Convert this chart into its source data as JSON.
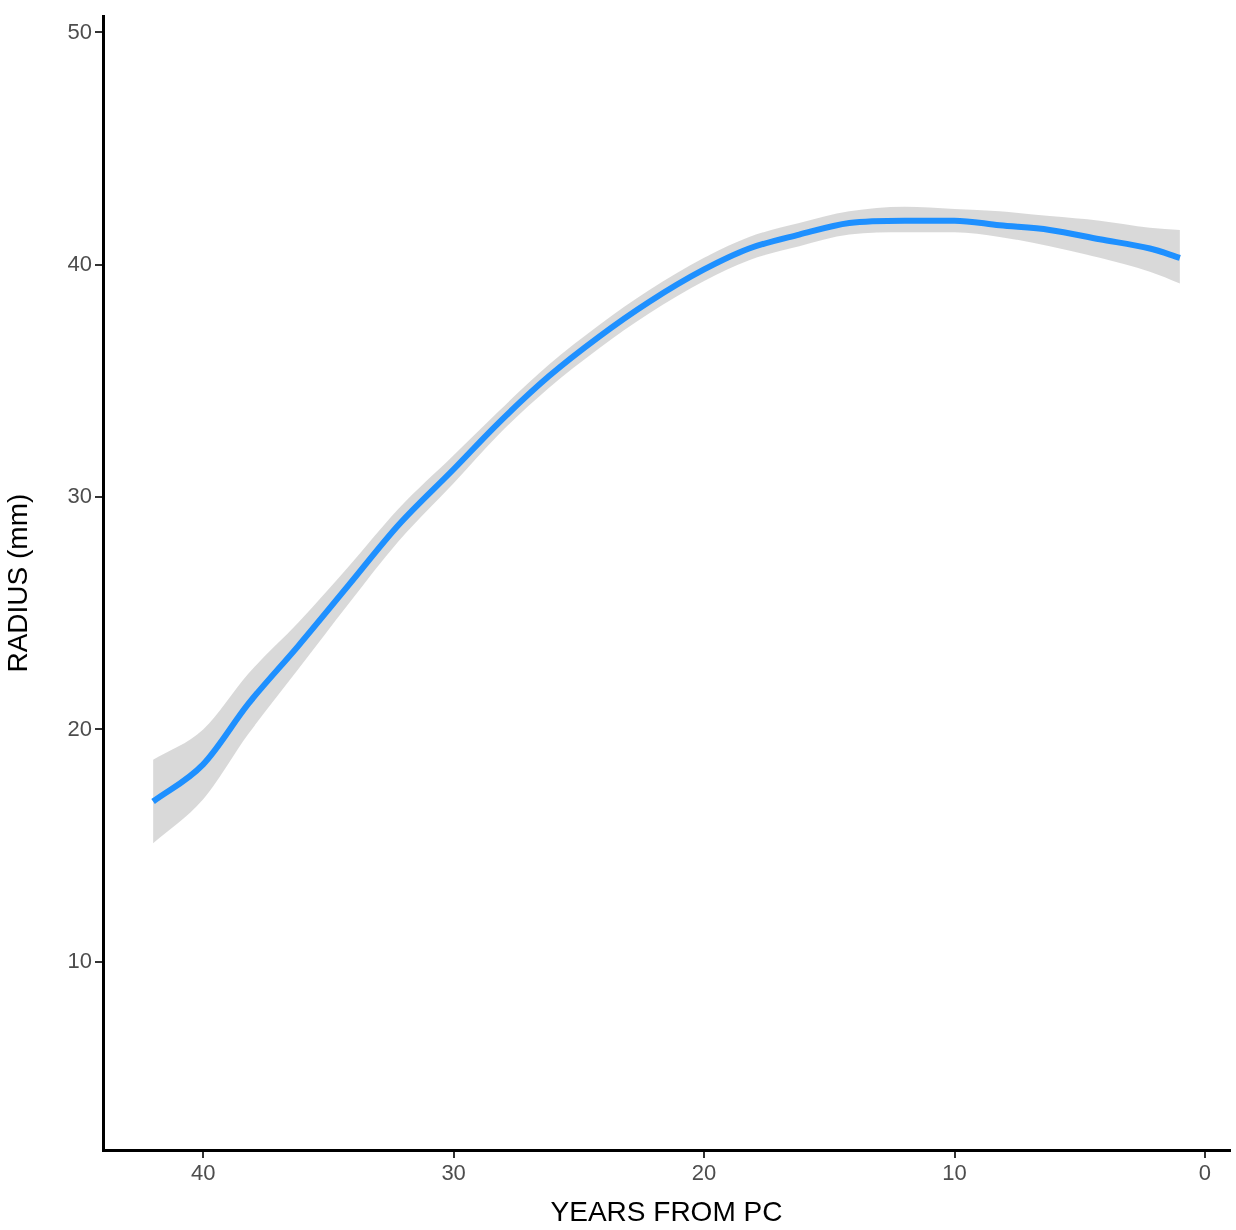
{
  "chart_data": {
    "type": "line",
    "xlabel": "YEARS FROM PC",
    "ylabel": "RADIUS (mm)",
    "x": [
      42,
      40,
      38.2,
      36.2,
      34.2,
      32.2,
      30,
      28.2,
      26.2,
      24.2,
      22.2,
      20,
      18.2,
      16.2,
      14.2,
      12,
      10,
      8.2,
      6.2,
      4.2,
      2.2,
      1
    ],
    "series": [
      {
        "color": "#1e90ff",
        "values": [
          16.9,
          18.5,
          21.1,
          23.6,
          26.2,
          28.8,
          31.2,
          33.2,
          35.2,
          36.9,
          38.4,
          39.8,
          40.7,
          41.3,
          41.8,
          41.9,
          41.9,
          41.7,
          41.5,
          41.1,
          40.7,
          40.3
        ],
        "lower": [
          15.1,
          17.0,
          19.8,
          22.6,
          25.4,
          28.1,
          30.6,
          32.7,
          34.7,
          36.4,
          37.9,
          39.3,
          40.2,
          40.8,
          41.3,
          41.4,
          41.4,
          41.2,
          40.8,
          40.3,
          39.7,
          39.2
        ],
        "upper": [
          18.7,
          20.0,
          22.4,
          24.6,
          27.0,
          29.5,
          31.8,
          33.7,
          35.7,
          37.4,
          38.9,
          40.3,
          41.2,
          41.8,
          42.3,
          42.5,
          42.4,
          42.3,
          42.1,
          41.9,
          41.6,
          41.5
        ]
      }
    ],
    "xlim": [
      44,
      -1
    ],
    "xticks": [
      40,
      30,
      20,
      10,
      0
    ],
    "ylim": [
      1.9,
      50.7
    ],
    "yticks": [
      10,
      20,
      30,
      40,
      50
    ],
    "grid": false,
    "legend": false,
    "marker": "none",
    "line_style": "solid"
  }
}
